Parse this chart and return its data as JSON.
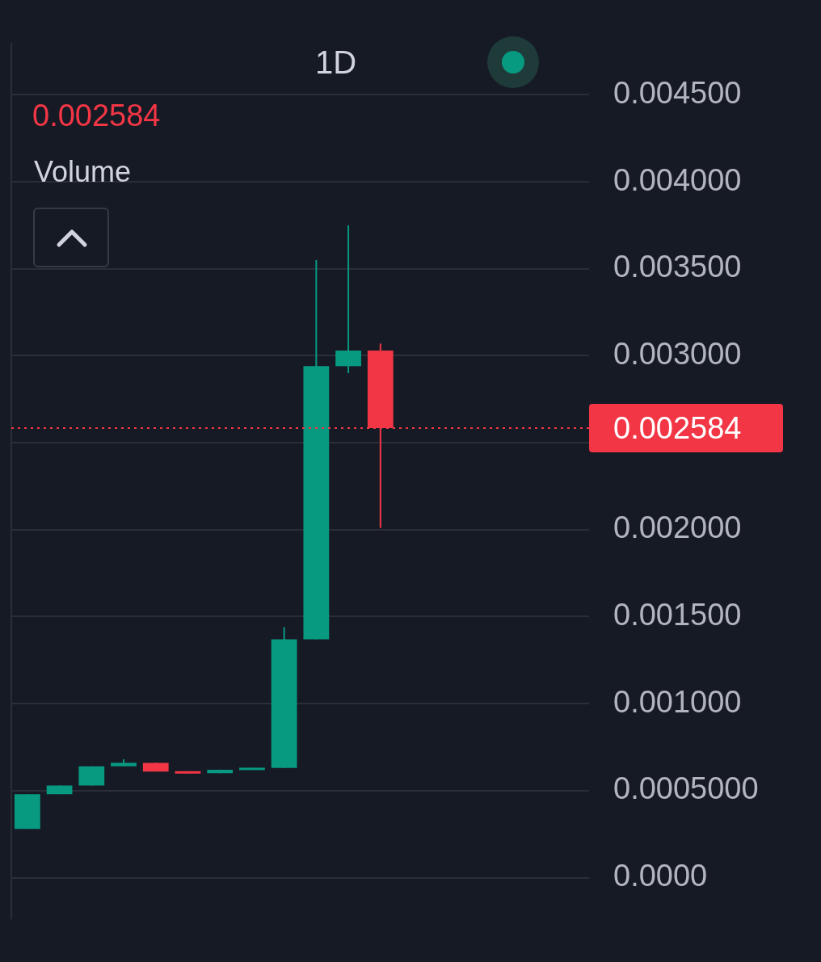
{
  "chart_data": {
    "type": "candlestick",
    "subtitle": "1D",
    "categories": [
      null,
      null,
      null,
      null,
      null,
      null,
      null,
      null,
      null,
      null,
      null,
      null,
      null,
      null,
      null,
      null,
      null,
      null
    ],
    "ohlc": [
      [
        0.00028,
        0.00048,
        0.00028,
        0.00048
      ],
      [
        0.00048,
        0.00053,
        0.00048,
        0.00053
      ],
      [
        0.00053,
        0.00064,
        0.00053,
        0.00064
      ],
      [
        0.00064,
        0.00068,
        0.00064,
        0.00066
      ],
      [
        0.00066,
        0.00066,
        0.00061,
        0.00061
      ],
      [
        0.00061,
        0.00061,
        0.0006,
        0.0006
      ],
      [
        0.0006,
        0.00062,
        0.0006,
        0.00062
      ],
      [
        0.00062,
        0.00063,
        0.00062,
        0.00063
      ],
      [
        0.00063,
        0.00144,
        0.00063,
        0.00137
      ],
      [
        0.00137,
        0.00355,
        0.00137,
        0.00294
      ],
      [
        0.00294,
        0.00375,
        0.0029,
        0.00303
      ],
      [
        0.00303,
        0.00307,
        0.00201,
        0.002584
      ],
      null,
      null,
      null,
      null,
      null,
      null
    ],
    "colors": [
      "#089981",
      "#089981",
      "#089981",
      "#089981",
      "#f23645",
      "#f23645",
      "#089981",
      "#089981",
      "#089981",
      "#089981",
      "#089981",
      "#f23645",
      null,
      null,
      null,
      null,
      null,
      null
    ],
    "ylim": [
      -0.00024,
      0.0048
    ],
    "yticks": [
      {
        "value": 0,
        "label": "0.0000"
      },
      {
        "value": 0.0005,
        "label": "0.0005000"
      },
      {
        "value": 0.001,
        "label": "0.001000"
      },
      {
        "value": 0.0015,
        "label": "0.001500"
      },
      {
        "value": 0.002,
        "label": "0.002000"
      },
      {
        "value": 0.0025,
        "label": null
      },
      {
        "value": 0.003,
        "label": "0.003000"
      },
      {
        "value": 0.0035,
        "label": "0.003500"
      },
      {
        "value": 0.004,
        "label": "0.004000"
      },
      {
        "value": 0.0045,
        "label": "0.004500"
      }
    ],
    "grid": "y",
    "tick_labels": "y",
    "ref_lines": [
      {
        "axis": "y",
        "value": 0.002584,
        "label": "0.002584",
        "color": "#f23645",
        "line_style": "dotted"
      }
    ],
    "annotations": [
      "0.002584",
      "Volume"
    ]
  }
}
